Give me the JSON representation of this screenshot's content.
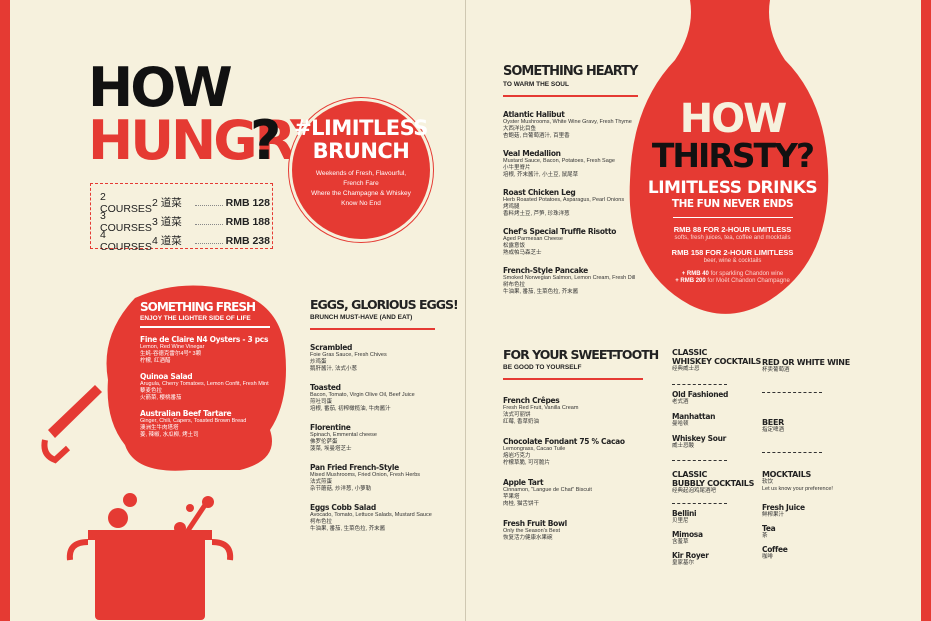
{
  "left": {
    "title_how": "HOW",
    "title_hungry": "HUNGRY",
    "title_q": "?",
    "courses": [
      {
        "label": "2 COURSES",
        "cn": "2 道菜",
        "price": "RMB 128"
      },
      {
        "label": "3 COURSES",
        "cn": "3 道菜",
        "price": "RMB 188"
      },
      {
        "label": "4 COURSES",
        "cn": "4 道菜",
        "price": "RMB 238"
      }
    ],
    "brunch": {
      "title1": "#LIMITLESS",
      "title2": "BRUNCH",
      "lines": [
        "Weekends of Fresh, Flavourful,",
        "French Fare",
        "Where the Champagne & Whiskey",
        "Know No End"
      ]
    },
    "fresh": {
      "heading": "SOMETHING FRESH",
      "sub": "ENJOY THE LIGHTER SIDE OF LIFE",
      "items": [
        {
          "title": "Fine de Claire N4 Oysters - 3 pcs",
          "desc": [
            "Lemon, Red Wine Vinegar",
            "生蚝-吞德克雷尔4号* 3颗",
            "柠檬, 红酒醋"
          ]
        },
        {
          "title": "Quinoa Salad",
          "desc": [
            "Arugula, Cherry Tomatoes, Lemon Confit, Fresh Mint",
            "藜麦色拉",
            "火箭菜, 樱桃番茄"
          ]
        },
        {
          "title": "Australian Beef Tartare",
          "desc": [
            "Ginger, Chili, Capers, Toasted Brown Bread",
            "澳洲生牛肉塔塔",
            "姜, 辣椒, 水瓜柳, 烤土司"
          ]
        }
      ]
    },
    "eggs": {
      "heading": "EGGS, GLORIOUS EGGS!",
      "sub": "BRUNCH MUST-HAVE (AND EAT)",
      "items": [
        {
          "title": "Scrambled",
          "desc": [
            "Foie Gras Sauce, Fresh Chives",
            "炒鸡蛋",
            "鹅肝酱汁, 法式小葱"
          ]
        },
        {
          "title": "Toasted",
          "desc": [
            "Bacon, Tomato, Virgin Olive Oil, Beef Juice",
            "煎吐司蛋",
            "培根, 番茄, 初榨橄榄油, 牛肉酱汁"
          ]
        },
        {
          "title": "Florentine",
          "desc": [
            "Spinach, Emmental cheese",
            "佛罗伦萨蛋",
            "菠菜, 埃曼塔芝士"
          ]
        },
        {
          "title": "Pan Fried French-Style",
          "desc": [
            "Mixed Mushrooms, Fried Onion, Fresh Herbs",
            "法式煎蛋",
            "杂节蘑菇, 炒洋葱, 小萝勒"
          ]
        },
        {
          "title": "Eggs Cobb Salad",
          "desc": [
            "Avocado, Tomato, Lettuce Salads, Mustard Sauce",
            "柯布色拉",
            "牛油果, 番茄, 生菜色拉, 芥末酱"
          ]
        }
      ]
    }
  },
  "right": {
    "hearty": {
      "heading": "SOMETHING HEARTY",
      "sub": "TO WARM THE SOUL",
      "items": [
        {
          "title": "Atlantic Halibut",
          "desc": [
            "Oyster Mushrooms, White Wine Gravy, Fresh Thyme",
            "大西洋比目鱼",
            "杏鲍菇, 白葡萄酒汁, 百里香"
          ]
        },
        {
          "title": "Veal Medallion",
          "desc": [
            "Mustard Sauce, Bacon, Potatoes, Fresh Sage",
            "小牛里脊片",
            "培根, 芥末酱汁, 小土豆, 鼠尾草"
          ]
        },
        {
          "title": "Roast Chicken Leg",
          "desc": [
            "Herb Roasted Potatoes, Asparagus, Pearl Onions",
            "烤鸡腿",
            "香料烤土豆, 芦笋, 珍珠洋葱"
          ]
        },
        {
          "title": "Chef's Special Truffle Risotto",
          "desc": [
            "Aged Parmesan Cheese",
            "松露意饭",
            "熟成帕马森芝士"
          ]
        },
        {
          "title": "French-Style Pancake",
          "desc": [
            "Smoked Norwegian Salmon, Lemon Cream, Fresh Dill",
            "树布色拉",
            "牛油果, 番茄, 生菜色拉, 芥末酱"
          ]
        }
      ]
    },
    "thirsty": {
      "how": "HOW",
      "thirsty": "THIRSTY?",
      "limitless": "LIMITLESS DRINKS",
      "fun": "THE FUN NEVER ENDS",
      "offer1_title": "RMB 88 FOR 2-HOUR LIMITLESS",
      "offer1_desc": "softs, fresh juices, tea, coffee and mocktails",
      "offer2_title": "RMB 158 FOR 2-HOUR LIMITLESS",
      "offer2_desc": "beer, wine & cocktails",
      "addon1_price": "+ RMB 40",
      "addon1_desc": "for sparkling Chandon wine",
      "addon2_price": "+ RMB 200",
      "addon2_desc": "for Moët Chandon Champagne"
    },
    "sweet": {
      "heading": "FOR YOUR SWEET-TOOTH",
      "sub": "BE GOOD TO YOURSELF",
      "items": [
        {
          "title": "French Crêpes",
          "desc": [
            "Fresh Red Fruit, Vanilla Cream",
            "法式可丽饼",
            "红莓, 香草奶油"
          ]
        },
        {
          "title": "Chocolate Fondant 75 % Cacao",
          "desc": [
            "Lemongrass, Cacao Tuile",
            "熔岩巧克力",
            "柠檬草脆, 可可脆片"
          ]
        },
        {
          "title": "Apple Tart",
          "desc": [
            "Cinnamon, \"Langue de Chat\" Biscuit",
            "苹果塔",
            "肉桂, 猫舌饼干"
          ]
        },
        {
          "title": "Fresh Fruit Bowl",
          "desc": [
            "Only the Season's Best",
            "恢复活力健康水果碗"
          ]
        }
      ]
    },
    "drinks": {
      "classic_whiskey": {
        "heading1": "CLASSIC",
        "heading2": "WHISKEY COCKTAILS",
        "cn": "经典威士忌",
        "items": [
          {
            "en": "Old Fashioned",
            "cn": "老式酒"
          },
          {
            "en": "Manhattan",
            "cn": "曼哈顿"
          },
          {
            "en": "Whiskey Sour",
            "cn": "威士忌酸"
          }
        ]
      },
      "classic_bubbly": {
        "heading1": "CLASSIC",
        "heading2": "BUBBLY COCKTAILS",
        "cn": "经典起泡鸡尾酒吧",
        "items": [
          {
            "en": "Bellini",
            "cn": "贝里尼"
          },
          {
            "en": "Mimosa",
            "cn": "含羞草"
          },
          {
            "en": "Kir Royer",
            "cn": "皇家基尔"
          }
        ]
      },
      "wine": {
        "heading": "RED OR WHITE WINE",
        "cn": "杯卖葡萄酒"
      },
      "beer": {
        "heading": "BEER",
        "cn": "指定啤酒"
      },
      "mocktails": {
        "heading": "MOCKTAILS",
        "cn": "软饮",
        "desc": "Let us know your preference!",
        "items": [
          {
            "en": "Fresh Juice",
            "cn": "鲜榨果汁"
          },
          {
            "en": "Tea",
            "cn": "茶"
          },
          {
            "en": "Coffee",
            "cn": "咖啡"
          }
        ]
      }
    }
  }
}
